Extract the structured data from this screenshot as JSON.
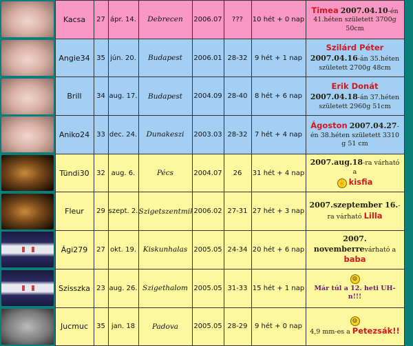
{
  "rows": [
    {
      "theme": "pink",
      "photo": "baby-photo",
      "name": "Kacsa",
      "age": "27",
      "birthday": "ápr. 14.",
      "city": "Debrecen",
      "since": "2006.07",
      "cycle": "???",
      "pregnancy": "10 hét + 0 nap",
      "note": {
        "highlight": "Timea",
        "bold": "2007.04.10",
        "text": "-én 41.héten született 3700g 50cm"
      }
    },
    {
      "theme": "blue",
      "photo": "baby-photo",
      "name": "Angie34",
      "age": "35",
      "birthday": "jún. 20.",
      "city": "Budapest",
      "since": "2006.01",
      "cycle": "28-32",
      "pregnancy": "9 hét + 1 nap",
      "note": {
        "highlight": "Szilárd Péter",
        "bold": "2007.04.16",
        "text": "-án 35.héten született 2700g 48cm"
      }
    },
    {
      "theme": "blue",
      "photo": "baby-photo",
      "name": "Brill",
      "age": "34",
      "birthday": "aug. 17.",
      "city": "Budapest",
      "since": "2004.09",
      "cycle": "28-40",
      "pregnancy": "8 hét + 6 nap",
      "note": {
        "highlight": "Erik Donát",
        "bold": "2007.04.18",
        "text": "-án 37.héten született 2960g 51cm"
      }
    },
    {
      "theme": "blue",
      "photo": "baby-photo",
      "name": "Aniko24",
      "age": "33",
      "birthday": "dec. 24.",
      "city": "Dunakeszi",
      "since": "2003.03",
      "cycle": "28-32",
      "pregnancy": "7 hét + 4 nap",
      "note": {
        "highlight": "Ágoston",
        "bold": "2007.04.27",
        "text": "-én 38.héten született 3310 g 51 cm"
      }
    },
    {
      "theme": "yellow",
      "photo": "ultrasound-photo",
      "name": "Tündi30",
      "age": "32",
      "birthday": "aug. 6.",
      "city": "Pécs",
      "since": "2004.07",
      "cycle": "26",
      "pregnancy": "31 hét + 4 nap",
      "note": {
        "bold": "2007.aug.18",
        "text": "-ra várható a",
        "highlight": "kisfia",
        "icon": "fingers-crossed-icon"
      }
    },
    {
      "theme": "yellow",
      "photo": "ultrasound-photo",
      "name": "Fleur",
      "age": "29",
      "birthday": "szept. 2.",
      "city": "Szigetszentmiklós",
      "since": "2006.02",
      "cycle": "27-31",
      "pregnancy": "27 hét + 3 nap",
      "note": {
        "bold": "2007.szeptember 16.",
        "text": "-ra várható",
        "highlight": "Lilla"
      }
    },
    {
      "theme": "yellow",
      "photo": "pregnancy-test-photo",
      "name": "Ági279",
      "age": "27",
      "birthday": "okt. 19.",
      "city": "Kiskunhalas",
      "since": "2005.05",
      "cycle": "24-34",
      "pregnancy": "20 hét + 6 nap",
      "note": {
        "bold": "2007. novemberre",
        "text": "várható a",
        "highlight": "baba"
      }
    },
    {
      "theme": "yellow",
      "photo": "pregnancy-test-photo",
      "name": "Szisszka",
      "age": "23",
      "birthday": "aug. 26.",
      "city": "Szigethalom",
      "since": "2005.05",
      "cycle": "31-33",
      "pregnancy": "15 hét + 1 nap",
      "note": {
        "purple": "Már túl a 12. heti UH-n!!!",
        "icon": "thumbs-up-smiley-icon"
      }
    },
    {
      "theme": "yellow",
      "photo": "ultrasound-gray-photo",
      "name": "Jucmuc",
      "age": "35",
      "birthday": "jan. 18",
      "city": "Padova",
      "since": "2005.05",
      "cycle": "28-29",
      "pregnancy": "9 hét + 0 nap",
      "note": {
        "text": "4,9 mm-es a",
        "highlight": "Petezsák!!",
        "icon": "thumbs-up-smiley-icon"
      }
    }
  ]
}
